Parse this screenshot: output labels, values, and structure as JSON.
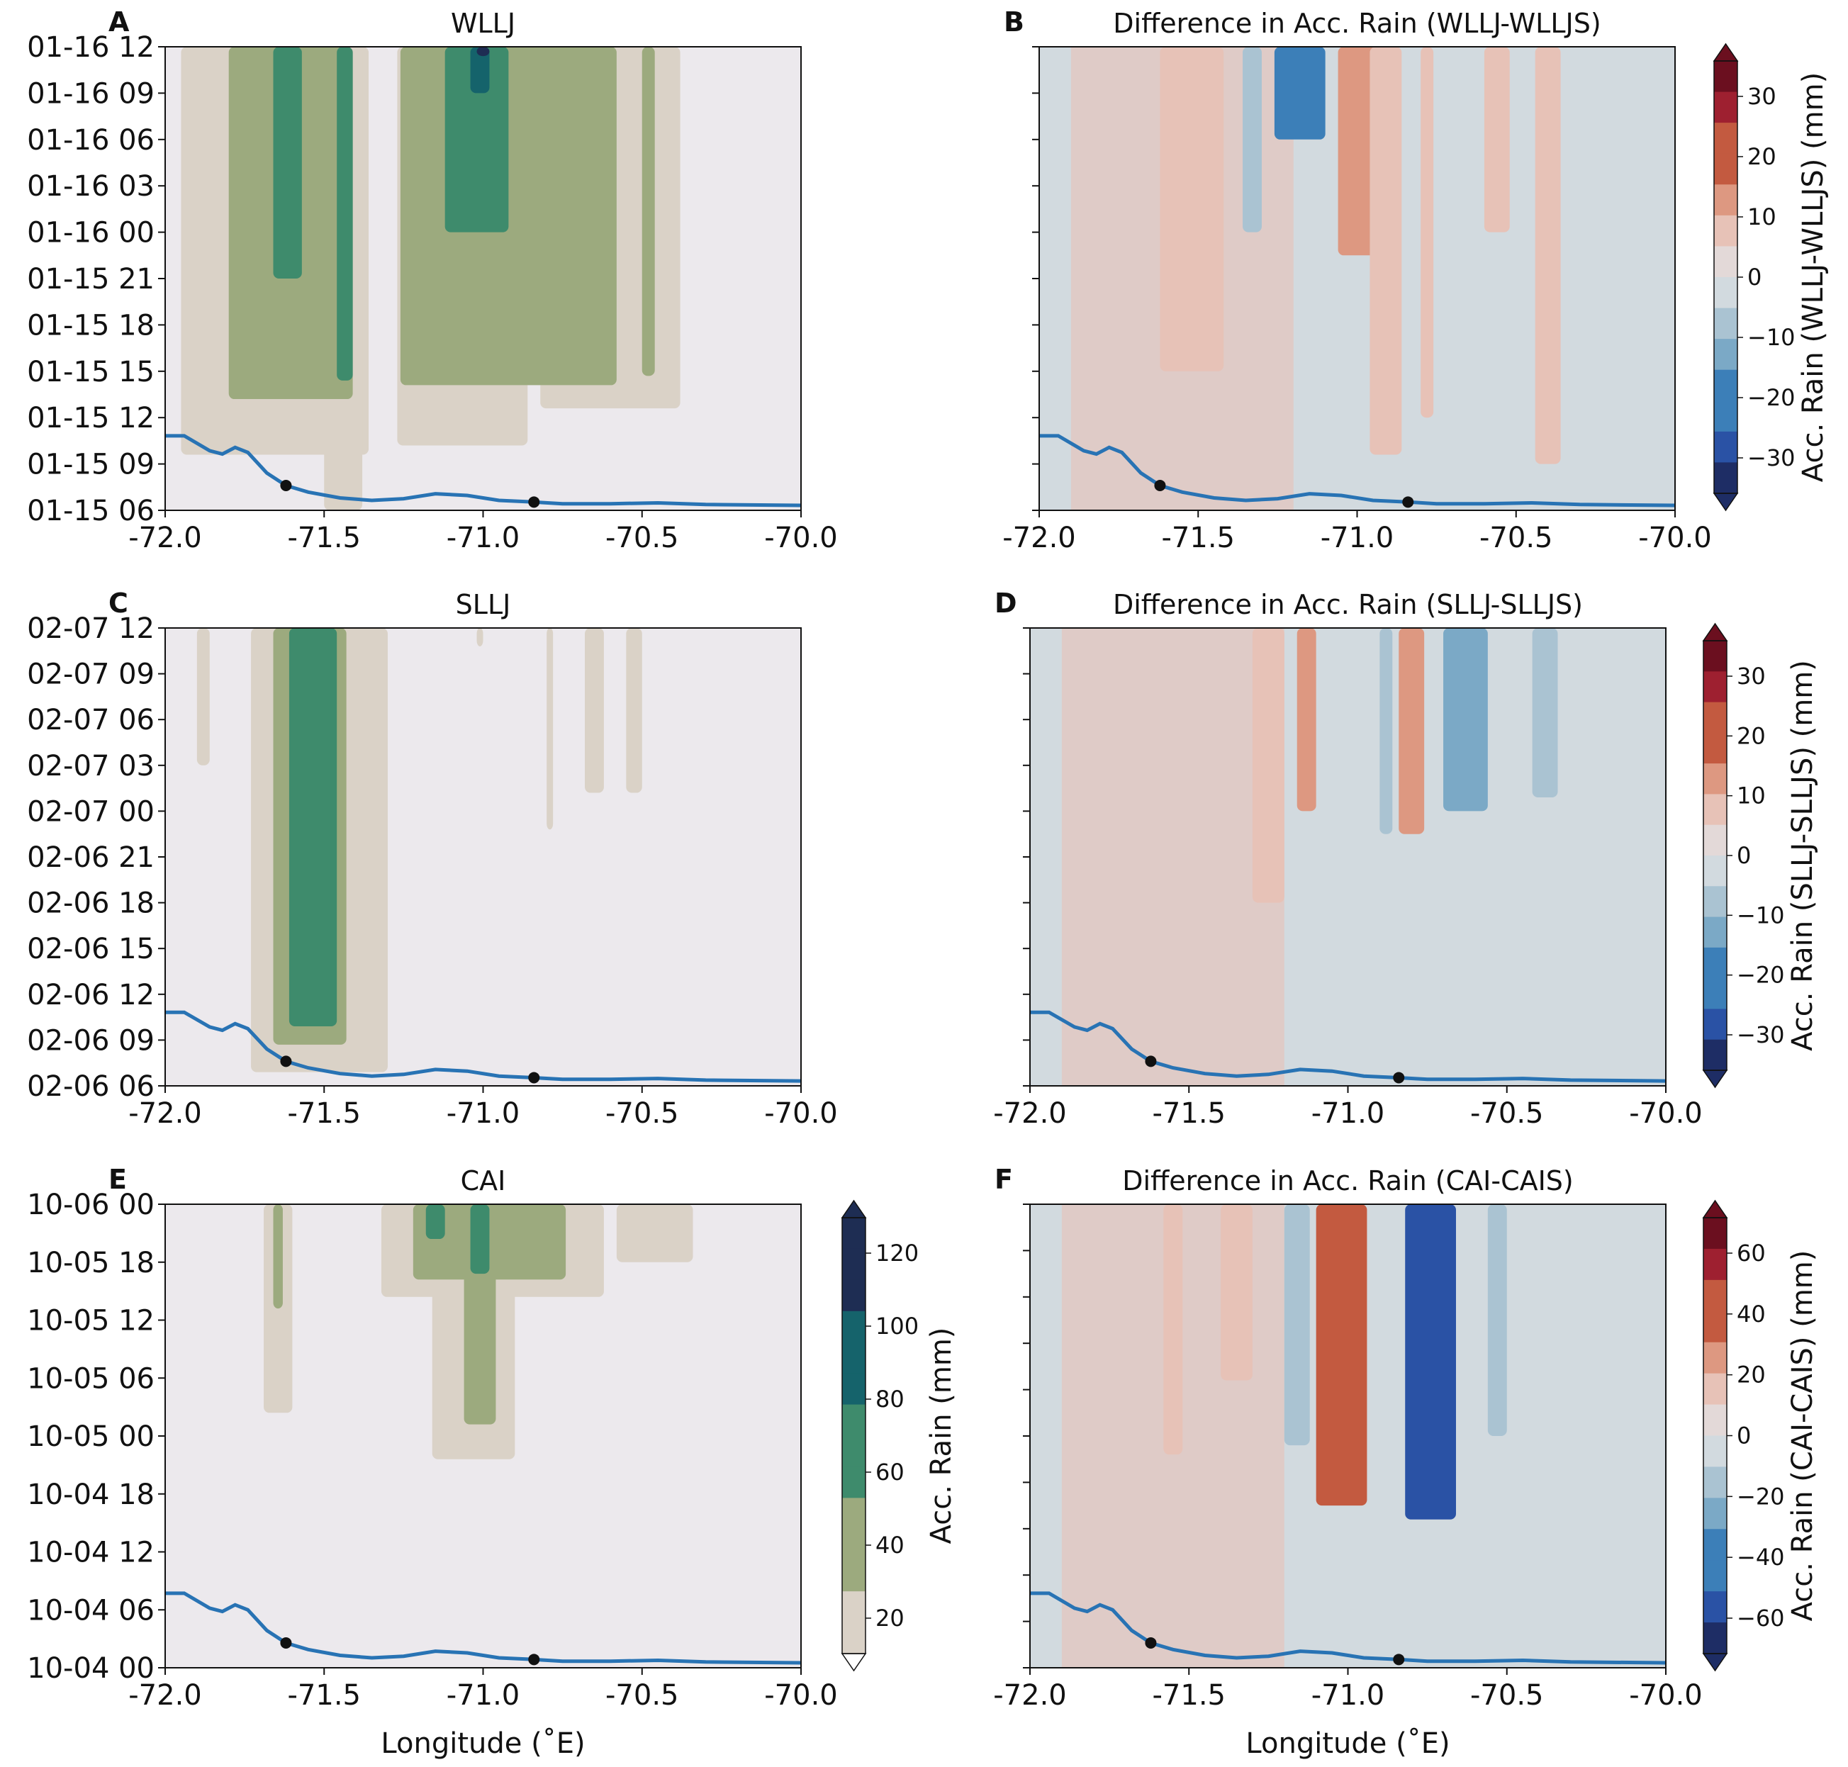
{
  "figure": {
    "xlabel": "Longitude ($^\\circ$E)",
    "xlabel_display": "Longitude (˚E)",
    "x_ticks": [
      "-72.0",
      "-71.5",
      "-71.0",
      "-70.5",
      "-70.0"
    ]
  },
  "chart_data": [
    {
      "panel": "A",
      "type": "heatmap",
      "title": "WLLJ",
      "xlim": [
        -72.0,
        -70.0
      ],
      "y_ticks": [
        "01-15 06",
        "01-15 09",
        "01-15 12",
        "01-15 15",
        "01-15 18",
        "01-15 21",
        "01-16 00",
        "01-16 03",
        "01-16 06",
        "01-16 09",
        "01-16 12"
      ],
      "colormap": "sequential",
      "bands": [
        {
          "x": [
            -71.95,
            -71.36
          ],
          "y_start": 1.2,
          "level": 1
        },
        {
          "x": [
            -71.5,
            -71.38
          ],
          "y_start": 0.0,
          "level": 1
        },
        {
          "x": [
            -71.27,
            -70.86
          ],
          "y_start": 1.4,
          "level": 1
        },
        {
          "x": [
            -70.82,
            -70.38
          ],
          "y_start": 2.2,
          "level": 1
        },
        {
          "x": [
            -71.8,
            -71.41
          ],
          "y_start": 2.4,
          "level": 2
        },
        {
          "x": [
            -71.26,
            -70.58
          ],
          "y_start": 2.7,
          "level": 2
        },
        {
          "x": [
            -70.5,
            -70.46
          ],
          "y_start": 2.9,
          "level": 2
        },
        {
          "x": [
            -71.66,
            -71.57
          ],
          "y_start": 5.0,
          "level": 3
        },
        {
          "x": [
            -71.46,
            -71.41
          ],
          "y_start": 2.8,
          "level": 3
        },
        {
          "x": [
            -71.12,
            -70.92
          ],
          "y_start": 6.0,
          "level": 3
        },
        {
          "x": [
            -71.04,
            -70.98
          ],
          "y_start": 9.0,
          "level": 4
        },
        {
          "x": [
            -71.02,
            -70.98
          ],
          "y_start": 9.8,
          "level": 5
        }
      ]
    },
    {
      "panel": "B",
      "type": "heatmap",
      "title": "Difference in Acc. Rain (WLLJ-WLLJS)",
      "xlim": [
        -72.0,
        -70.0
      ],
      "colormap": "diverging",
      "bands": [
        {
          "x": [
            -71.62,
            -71.42
          ],
          "y_start": 3.0,
          "value": 6
        },
        {
          "x": [
            -71.36,
            -71.3
          ],
          "y_start": 6.0,
          "value": -6
        },
        {
          "x": [
            -71.26,
            -71.1
          ],
          "y_start": 8.0,
          "value": -18
        },
        {
          "x": [
            -71.06,
            -70.92
          ],
          "y_start": 5.5,
          "value": 16
        },
        {
          "x": [
            -70.96,
            -70.86
          ],
          "y_start": 1.2,
          "value": 10
        },
        {
          "x": [
            -70.8,
            -70.76
          ],
          "y_start": 2.0,
          "value": 8
        },
        {
          "x": [
            -70.6,
            -70.52
          ],
          "y_start": 6.0,
          "value": 6
        },
        {
          "x": [
            -70.44,
            -70.36
          ],
          "y_start": 1.0,
          "value": 6
        }
      ],
      "colorbar": {
        "label": "Acc. Rain (WLLJ-WLLJS) (mm)",
        "ticks": [
          "30",
          "20",
          "10",
          "0",
          "−10",
          "−20",
          "−30"
        ],
        "range": [
          -35,
          35
        ]
      }
    },
    {
      "panel": "C",
      "type": "heatmap",
      "title": "SLLJ",
      "xlim": [
        -72.0,
        -70.0
      ],
      "y_ticks": [
        "02-06 06",
        "02-06 09",
        "02-06 12",
        "02-06 15",
        "02-06 18",
        "02-06 21",
        "02-07 00",
        "02-07 03",
        "02-07 06",
        "02-07 09",
        "02-07 12"
      ],
      "colormap": "sequential",
      "bands": [
        {
          "x": [
            -71.9,
            -71.86
          ],
          "y_start": 7.0,
          "level": 1
        },
        {
          "x": [
            -71.73,
            -71.3
          ],
          "y_start": 0.3,
          "level": 1
        },
        {
          "x": [
            -71.02,
            -71.0
          ],
          "y_start": 9.6,
          "level": 1
        },
        {
          "x": [
            -70.8,
            -70.78
          ],
          "y_start": 5.6,
          "level": 1
        },
        {
          "x": [
            -70.68,
            -70.62
          ],
          "y_start": 6.4,
          "level": 1
        },
        {
          "x": [
            -70.55,
            -70.5
          ],
          "y_start": 6.4,
          "level": 1
        },
        {
          "x": [
            -71.66,
            -71.43
          ],
          "y_start": 0.9,
          "level": 2
        },
        {
          "x": [
            -71.61,
            -71.46
          ],
          "y_start": 1.3,
          "level": 3
        }
      ]
    },
    {
      "panel": "D",
      "type": "heatmap",
      "title": "Difference in Acc. Rain (SLLJ-SLLJS)",
      "xlim": [
        -72.0,
        -70.0
      ],
      "colormap": "diverging",
      "bands": [
        {
          "x": [
            -71.3,
            -71.2
          ],
          "y_start": 4.0,
          "value": 4
        },
        {
          "x": [
            -71.16,
            -71.1
          ],
          "y_start": 6.0,
          "value": 16
        },
        {
          "x": [
            -70.9,
            -70.86
          ],
          "y_start": 5.5,
          "value": -8
        },
        {
          "x": [
            -70.84,
            -70.76
          ],
          "y_start": 5.5,
          "value": 16
        },
        {
          "x": [
            -70.7,
            -70.56
          ],
          "y_start": 6.0,
          "value": -12
        },
        {
          "x": [
            -70.42,
            -70.34
          ],
          "y_start": 6.3,
          "value": -8
        }
      ],
      "colorbar": {
        "label": "Acc. Rain (SLLJ-SLLJS) (mm)",
        "ticks": [
          "30",
          "20",
          "10",
          "0",
          "−10",
          "−20",
          "−30"
        ],
        "range": [
          -35,
          35
        ]
      }
    },
    {
      "panel": "E",
      "type": "heatmap",
      "title": "CAI",
      "xlim": [
        -72.0,
        -70.0
      ],
      "y_ticks": [
        "10-04 00",
        "10-04 06",
        "10-04 12",
        "10-04 18",
        "10-05 00",
        "10-05 06",
        "10-05 12",
        "10-05 18",
        "10-06 00"
      ],
      "colormap": "sequential",
      "bands": [
        {
          "x": [
            -71.69,
            -71.6
          ],
          "y_start": 4.4,
          "level": 1
        },
        {
          "x": [
            -71.32,
            -70.62
          ],
          "y_start": 6.4,
          "level": 1
        },
        {
          "x": [
            -71.16,
            -70.9
          ],
          "y_start": 3.6,
          "level": 1
        },
        {
          "x": [
            -70.58,
            -70.34
          ],
          "y_start": 7.0,
          "level": 1
        },
        {
          "x": [
            -71.66,
            -71.63
          ],
          "y_start": 6.2,
          "level": 2
        },
        {
          "x": [
            -71.22,
            -70.74
          ],
          "y_start": 6.7,
          "level": 2
        },
        {
          "x": [
            -71.06,
            -70.96
          ],
          "y_start": 4.2,
          "level": 2
        },
        {
          "x": [
            -71.18,
            -71.12
          ],
          "y_start": 7.4,
          "level": 3
        },
        {
          "x": [
            -71.04,
            -70.98
          ],
          "y_start": 6.8,
          "level": 3
        }
      ],
      "colorbar": {
        "label": "Acc. Rain (mm)",
        "ticks": [
          "120",
          "100",
          "80",
          "60",
          "40",
          "20"
        ],
        "range": [
          20,
          120
        ]
      }
    },
    {
      "panel": "F",
      "type": "heatmap",
      "title": "Difference in Acc. Rain (CAI-CAIS)",
      "xlim": [
        -72.0,
        -70.0
      ],
      "colormap": "diverging",
      "bands": [
        {
          "x": [
            -71.58,
            -71.52
          ],
          "y_start": 4.6,
          "value": 10
        },
        {
          "x": [
            -71.4,
            -71.3
          ],
          "y_start": 6.2,
          "value": 12
        },
        {
          "x": [
            -71.2,
            -71.12
          ],
          "y_start": 4.8,
          "value": -10
        },
        {
          "x": [
            -71.1,
            -70.94
          ],
          "y_start": 3.5,
          "value": 36
        },
        {
          "x": [
            -70.82,
            -70.66
          ],
          "y_start": 3.2,
          "value": -56
        },
        {
          "x": [
            -70.56,
            -70.5
          ],
          "y_start": 5.0,
          "value": -10
        }
      ],
      "colorbar": {
        "label": "Acc. Rain (CAI-CAIS) (mm)",
        "ticks": [
          "60",
          "40",
          "20",
          "0",
          "−20",
          "−40",
          "−60"
        ],
        "range": [
          -65,
          65
        ]
      }
    }
  ]
}
